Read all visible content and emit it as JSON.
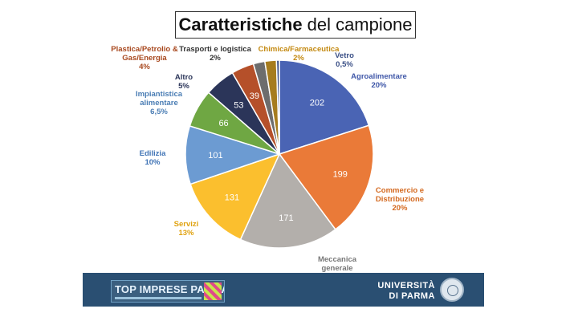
{
  "header": {
    "title_bold": "Caratteristiche",
    "title_rest": "del campione"
  },
  "chart_data": {
    "type": "pie",
    "title": "Caratteristiche del campione",
    "slices": [
      {
        "label": "Agroalimentare",
        "value": 202,
        "percent": "20%",
        "color": "#4a64b4",
        "label_color": "#3f57a8"
      },
      {
        "label": "Commercio e Distribuzione",
        "value": 199,
        "percent": "20%",
        "color": "#ea7a38",
        "label_color": "#d4691f"
      },
      {
        "label": "Meccanica generale",
        "value": 171,
        "percent": "17%",
        "color": "#b3afab",
        "label_color": "#777777"
      },
      {
        "label": "Servizi",
        "value": 131,
        "percent": "13%",
        "color": "#fbbf2e",
        "label_color": "#e0a20f"
      },
      {
        "label": "Edilizia",
        "value": 101,
        "percent": "10%",
        "color": "#6c9bd2",
        "label_color": "#3f73b5"
      },
      {
        "label": "Impiantistica alimentare",
        "value": 66,
        "percent": "6,5%",
        "color": "#6fa743",
        "label_color": "#4a7db4"
      },
      {
        "label": "Altro",
        "value": 53,
        "percent": "5%",
        "color": "#2b3559",
        "label_color": "#2b3559"
      },
      {
        "label": "Plastica/Petrolio & Gas/Energia",
        "value": 39,
        "percent": "4%",
        "color": "#b5502a",
        "label_color": "#a8481e"
      },
      {
        "label": "Trasporti e logistica",
        "value": 20,
        "percent": "2%",
        "color": "#6d6d6d",
        "label_color": "#333333"
      },
      {
        "label": "Chimica/Farmaceutica",
        "value": 20,
        "percent": "2%",
        "color": "#a67c1e",
        "label_color": "#c48a12"
      },
      {
        "label": "Vetro",
        "value": 5,
        "percent": "0,5%",
        "color": "#3a4f86",
        "label_color": "#3a4f86"
      }
    ]
  },
  "footer": {
    "logo_text": "TOP IMPRESE PARMA",
    "university_line1": "UNIVERSITÀ",
    "university_line2": "DI PARMA"
  }
}
